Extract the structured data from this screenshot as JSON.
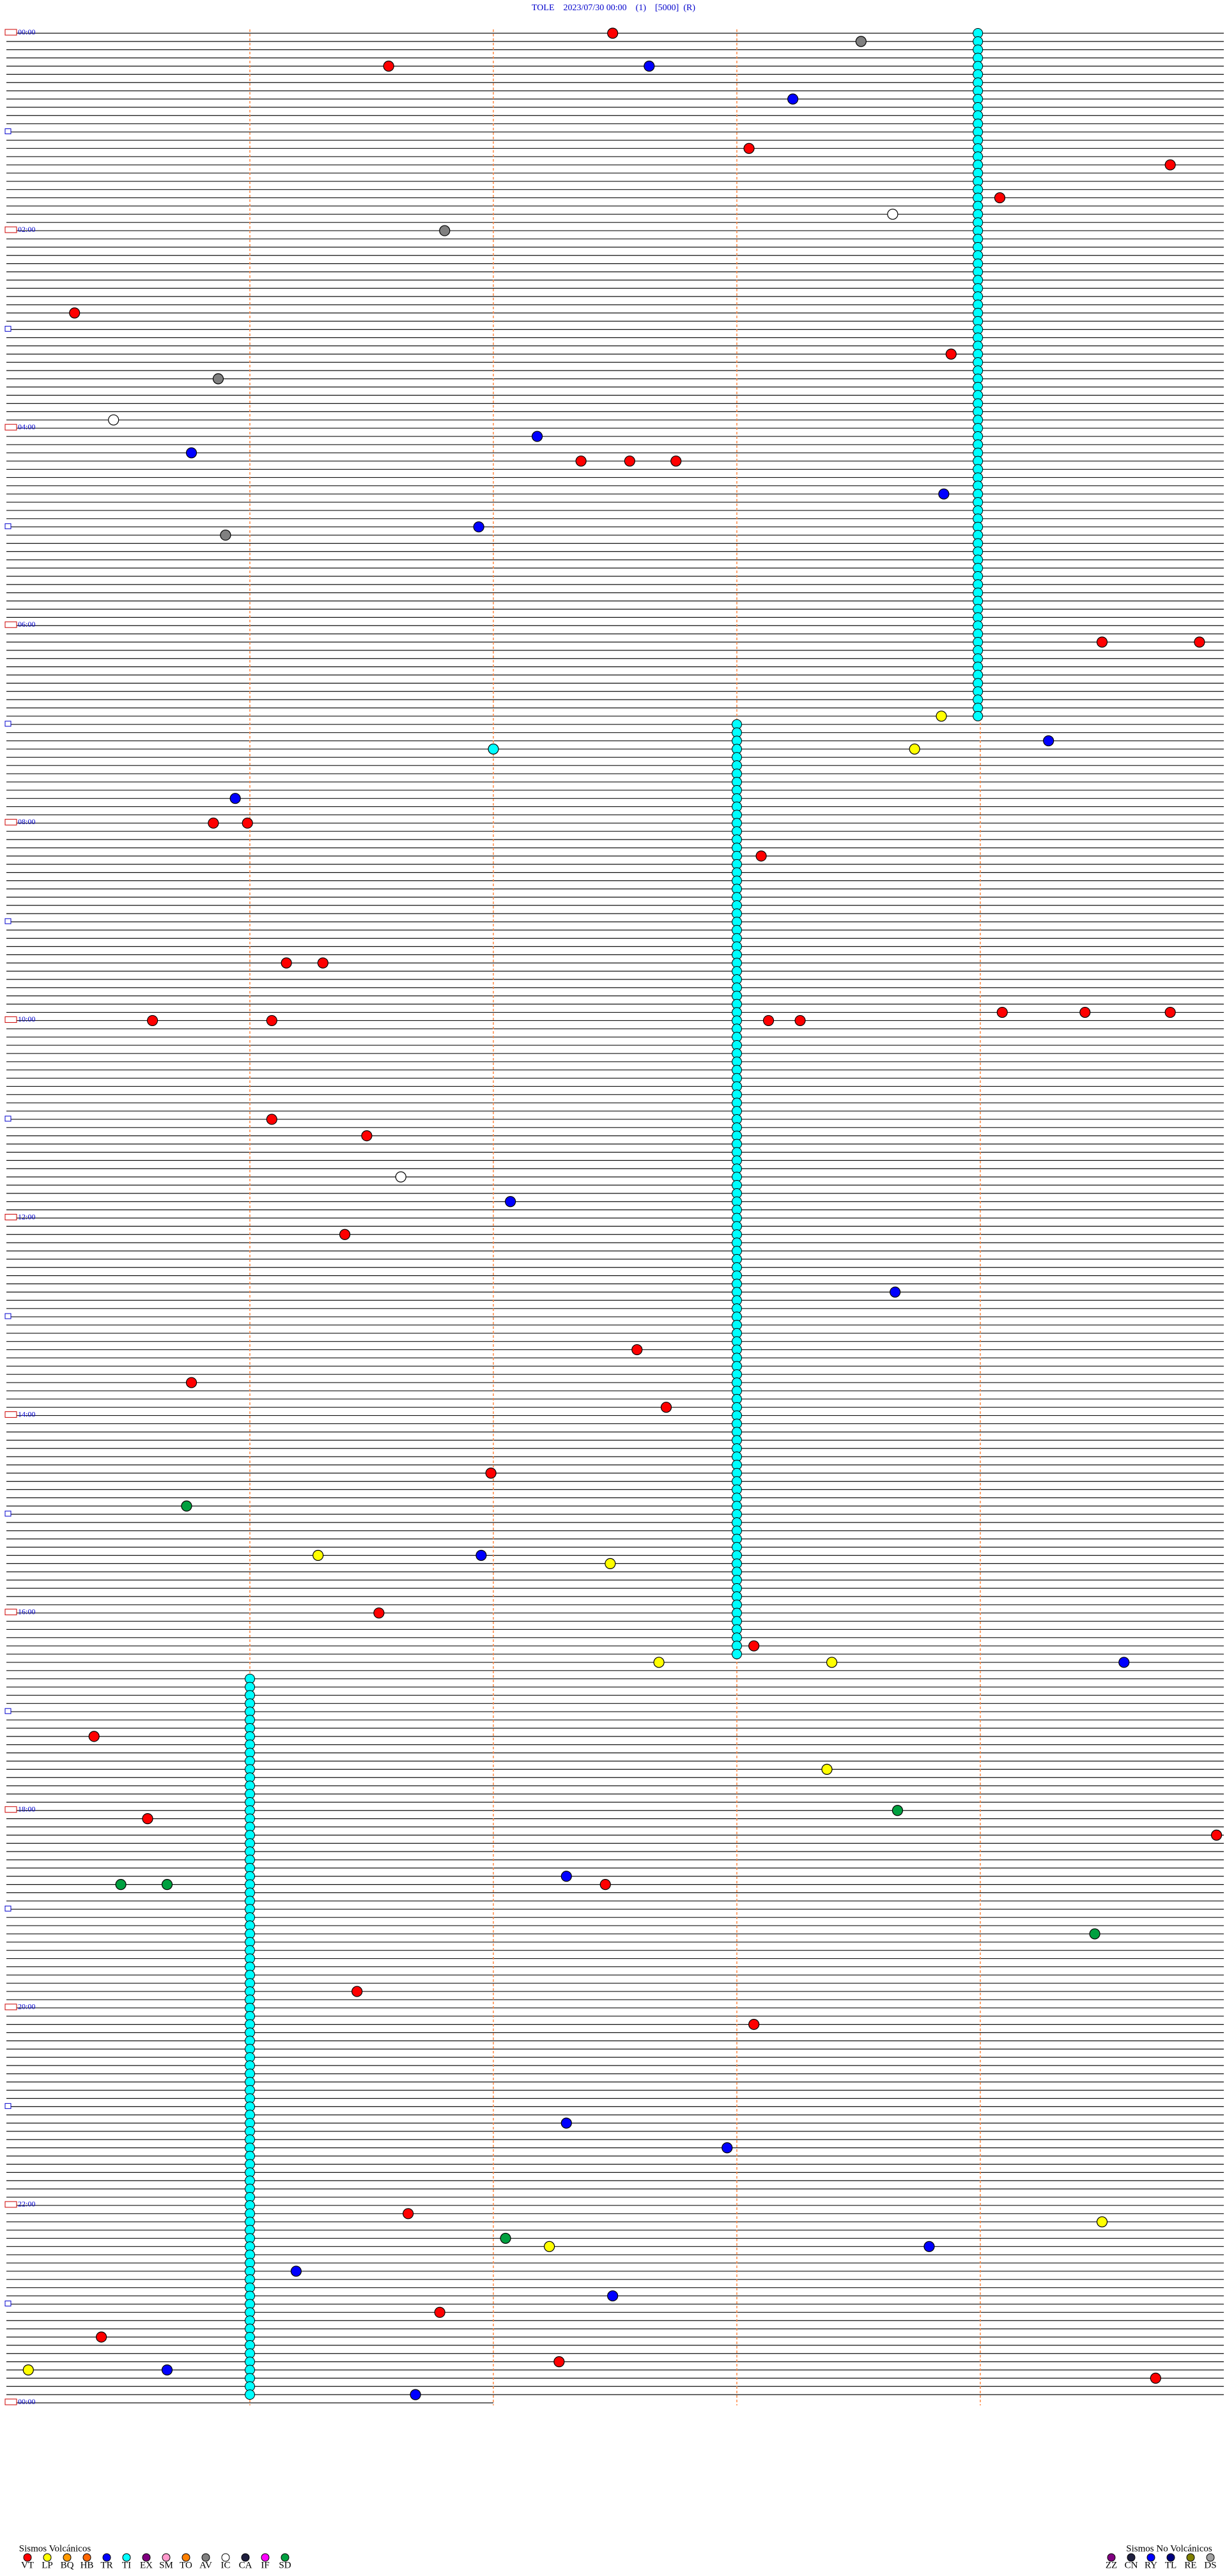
{
  "chart_data": {
    "type": "helicorder",
    "title": "TOLE    2023/07/30 00:00    (1)    [5000]  (R)",
    "xlim": [
      0,
      5
    ],
    "xticks": [
      1,
      2,
      3,
      4
    ],
    "ylim": [
      0,
      288
    ],
    "data_end_minute": 2,
    "hour_labels": [
      {
        "row": 0,
        "label": "00:00"
      },
      {
        "row": 24,
        "label": "02:00"
      },
      {
        "row": 48,
        "label": "04:00"
      },
      {
        "row": 72,
        "label": "06:00"
      },
      {
        "row": 96,
        "label": "08:00"
      },
      {
        "row": 120,
        "label": "10:00"
      },
      {
        "row": 144,
        "label": "12:00"
      },
      {
        "row": 168,
        "label": "14:00"
      },
      {
        "row": 192,
        "label": "16:00"
      },
      {
        "row": 216,
        "label": "18:00"
      },
      {
        "row": 240,
        "label": "20:00"
      },
      {
        "row": 264,
        "label": "22:00"
      },
      {
        "row": 288,
        "label": "00:00"
      }
    ],
    "legends": [
      {
        "title": "Sismos Volcánicos",
        "items": [
          {
            "label": "VT",
            "color": "#ff0000"
          },
          {
            "label": "LP",
            "color": "#ffff00"
          },
          {
            "label": "BQ",
            "color": "#ff9900"
          },
          {
            "label": "HB",
            "color": "#ff6600"
          },
          {
            "label": "TR",
            "color": "#0000ff"
          },
          {
            "label": "TI",
            "color": "#00ffff"
          },
          {
            "label": "EX",
            "color": "#800080"
          },
          {
            "label": "SM",
            "color": "#ff99cc"
          },
          {
            "label": "TO",
            "color": "#ff8000"
          },
          {
            "label": "AV",
            "color": "#808080"
          },
          {
            "label": "IC",
            "color": "#ffffff"
          },
          {
            "label": "CA",
            "color": "#202040"
          },
          {
            "label": "IF",
            "color": "#ff00ff"
          },
          {
            "label": "SD",
            "color": "#00a040"
          }
        ]
      },
      {
        "title": "Sismos No Volcánicos",
        "items": [
          {
            "label": "ZZ",
            "color": "#800080"
          },
          {
            "label": "CN",
            "color": "#202040"
          },
          {
            "label": "RY",
            "color": "#0000ff"
          },
          {
            "label": "TL",
            "color": "#000080"
          },
          {
            "label": "RE",
            "color": "#808000"
          },
          {
            "label": "DS",
            "color": "#a0a0a0"
          }
        ]
      }
    ],
    "tremor_segments": [
      {
        "type": "TI",
        "minute": 3.99,
        "rows": [
          0,
          83
        ]
      },
      {
        "type": "TI",
        "minute": 3.0,
        "rows": [
          84,
          197
        ]
      },
      {
        "type": "TI",
        "minute": 1.0,
        "rows": [
          200,
          287
        ]
      }
    ],
    "events": [
      {
        "type": "VT",
        "row": 0,
        "minute": 2.49
      },
      {
        "type": "AV",
        "row": 1,
        "minute": 3.51
      },
      {
        "type": "VT",
        "row": 4,
        "minute": 1.57
      },
      {
        "type": "TR",
        "row": 4,
        "minute": 2.64
      },
      {
        "type": "TR",
        "row": 8,
        "minute": 3.23
      },
      {
        "type": "VT",
        "row": 14,
        "minute": 3.05
      },
      {
        "type": "VT",
        "row": 16,
        "minute": 4.78
      },
      {
        "type": "VT",
        "row": 20,
        "minute": 4.08
      },
      {
        "type": "IC",
        "row": 22,
        "minute": 3.64
      },
      {
        "type": "AV",
        "row": 24,
        "minute": 1.8
      },
      {
        "type": "VT",
        "row": 34,
        "minute": 0.28
      },
      {
        "type": "VT",
        "row": 39,
        "minute": 3.88
      },
      {
        "type": "AV",
        "row": 42,
        "minute": 0.87
      },
      {
        "type": "IC",
        "row": 47,
        "minute": 0.44
      },
      {
        "type": "TR",
        "row": 49,
        "minute": 2.18
      },
      {
        "type": "TR",
        "row": 51,
        "minute": 0.76
      },
      {
        "type": "VT",
        "row": 52,
        "minute": 2.36
      },
      {
        "type": "VT",
        "row": 52,
        "minute": 2.56
      },
      {
        "type": "VT",
        "row": 52,
        "minute": 2.75
      },
      {
        "type": "TR",
        "row": 56,
        "minute": 3.85
      },
      {
        "type": "TR",
        "row": 60,
        "minute": 1.94
      },
      {
        "type": "AV",
        "row": 61,
        "minute": 0.9
      },
      {
        "type": "VT",
        "row": 74,
        "minute": 4.5
      },
      {
        "type": "VT",
        "row": 74,
        "minute": 4.9
      },
      {
        "type": "LP",
        "row": 83,
        "minute": 3.84
      },
      {
        "type": "TR",
        "row": 86,
        "minute": 4.28
      },
      {
        "type": "TI",
        "row": 87,
        "minute": 2.0
      },
      {
        "type": "LP",
        "row": 87,
        "minute": 3.73
      },
      {
        "type": "TR",
        "row": 93,
        "minute": 0.94
      },
      {
        "type": "VT",
        "row": 96,
        "minute": 0.85
      },
      {
        "type": "VT",
        "row": 96,
        "minute": 0.99
      },
      {
        "type": "VT",
        "row": 100,
        "minute": 3.1
      },
      {
        "type": "VT",
        "row": 113,
        "minute": 1.15
      },
      {
        "type": "VT",
        "row": 113,
        "minute": 1.3
      },
      {
        "type": "VT",
        "row": 119,
        "minute": 4.09
      },
      {
        "type": "VT",
        "row": 119,
        "minute": 4.43
      },
      {
        "type": "VT",
        "row": 119,
        "minute": 4.78
      },
      {
        "type": "VT",
        "row": 120,
        "minute": 0.6
      },
      {
        "type": "VT",
        "row": 120,
        "minute": 1.09
      },
      {
        "type": "VT",
        "row": 120,
        "minute": 3.13
      },
      {
        "type": "VT",
        "row": 120,
        "minute": 3.26
      },
      {
        "type": "VT",
        "row": 132,
        "minute": 1.09
      },
      {
        "type": "VT",
        "row": 134,
        "minute": 1.48
      },
      {
        "type": "IC",
        "row": 139,
        "minute": 1.62
      },
      {
        "type": "TR",
        "row": 142,
        "minute": 2.07
      },
      {
        "type": "VT",
        "row": 146,
        "minute": 1.39
      },
      {
        "type": "TR",
        "row": 153,
        "minute": 3.65
      },
      {
        "type": "VT",
        "row": 160,
        "minute": 2.59
      },
      {
        "type": "VT",
        "row": 164,
        "minute": 0.76
      },
      {
        "type": "VT",
        "row": 167,
        "minute": 2.71
      },
      {
        "type": "VT",
        "row": 175,
        "minute": 1.99
      },
      {
        "type": "SD",
        "row": 179,
        "minute": 0.74
      },
      {
        "type": "LP",
        "row": 185,
        "minute": 1.28
      },
      {
        "type": "TR",
        "row": 185,
        "minute": 1.95
      },
      {
        "type": "LP",
        "row": 186,
        "minute": 2.48
      },
      {
        "type": "VT",
        "row": 192,
        "minute": 1.53
      },
      {
        "type": "VT",
        "row": 196,
        "minute": 3.07
      },
      {
        "type": "LP",
        "row": 198,
        "minute": 2.68
      },
      {
        "type": "LP",
        "row": 198,
        "minute": 3.39
      },
      {
        "type": "TR",
        "row": 198,
        "minute": 4.59
      },
      {
        "type": "VT",
        "row": 207,
        "minute": 0.36
      },
      {
        "type": "LP",
        "row": 211,
        "minute": 3.37
      },
      {
        "type": "SD",
        "row": 216,
        "minute": 3.66
      },
      {
        "type": "VT",
        "row": 217,
        "minute": 0.58
      },
      {
        "type": "VT",
        "row": 219,
        "minute": 4.97
      },
      {
        "type": "TR",
        "row": 224,
        "minute": 2.3
      },
      {
        "type": "SD",
        "row": 225,
        "minute": 0.47
      },
      {
        "type": "SD",
        "row": 225,
        "minute": 0.66
      },
      {
        "type": "VT",
        "row": 225,
        "minute": 2.46
      },
      {
        "type": "SD",
        "row": 231,
        "minute": 4.47
      },
      {
        "type": "VT",
        "row": 238,
        "minute": 1.44
      },
      {
        "type": "VT",
        "row": 242,
        "minute": 3.07
      },
      {
        "type": "TR",
        "row": 254,
        "minute": 2.3
      },
      {
        "type": "TR",
        "row": 257,
        "minute": 2.96
      },
      {
        "type": "VT",
        "row": 265,
        "minute": 1.65
      },
      {
        "type": "LP",
        "row": 266,
        "minute": 4.5
      },
      {
        "type": "SD",
        "row": 268,
        "minute": 2.05
      },
      {
        "type": "LP",
        "row": 269,
        "minute": 2.23
      },
      {
        "type": "TR",
        "row": 269,
        "minute": 3.79
      },
      {
        "type": "TR",
        "row": 272,
        "minute": 1.19
      },
      {
        "type": "TR",
        "row": 275,
        "minute": 2.49
      },
      {
        "type": "VT",
        "row": 277,
        "minute": 1.78
      },
      {
        "type": "VT",
        "row": 280,
        "minute": 0.39
      },
      {
        "type": "VT",
        "row": 283,
        "minute": 2.27
      },
      {
        "type": "LP",
        "row": 284,
        "minute": 0.09
      },
      {
        "type": "TR",
        "row": 284,
        "minute": 0.66
      },
      {
        "type": "VT",
        "row": 285,
        "minute": 4.72
      },
      {
        "type": "TR",
        "row": 287,
        "minute": 1.68
      }
    ]
  }
}
